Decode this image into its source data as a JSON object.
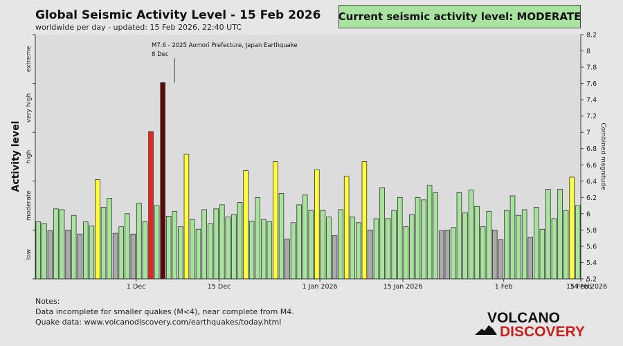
{
  "header": {
    "title": "Global Seismic Activity Level - 15 Feb 2026",
    "subtitle": "worldwide per day - updated: 15 Feb 2026, 22:40 UTC"
  },
  "status": {
    "label": "Current seismic activity level: MODERATE",
    "color": "#a8e4a0"
  },
  "notes": {
    "heading": "Notes:",
    "line1": "Data incomplete for smaller quakes (M<4), near complete from M4.",
    "line2": "Quake data: www.volcanodiscovery.com/earthquakes/today.html"
  },
  "logo": {
    "word1": "VOLCANO",
    "word2": "DISCOVERY"
  },
  "colors": {
    "green": "#a6e49c",
    "gray": "#ababab",
    "yellow": "#ffff3c",
    "red": "#e8231e",
    "darkred": "#5a0a0a"
  },
  "chart_data": {
    "type": "bar",
    "ylabel": "Activity level",
    "y2label": "Combined magnitude",
    "ylim": [
      5.2,
      8.2
    ],
    "right_ticks": [
      "5.2",
      "5.4",
      "5.6",
      "5.8",
      "6",
      "6.2",
      "6.4",
      "6.6",
      "6.8",
      "7",
      "7.2",
      "7.4",
      "7.6",
      "7.8",
      "8",
      "8.2"
    ],
    "levels": [
      "low",
      "moderate",
      "high",
      "very high",
      "extreme"
    ],
    "x_ticks": [
      {
        "label": "1 Dec",
        "day": 17
      },
      {
        "label": "15 Dec",
        "day": 31
      },
      {
        "label": "1 Jan 2026",
        "day": 48
      },
      {
        "label": "15 Jan 2026",
        "day": 62
      },
      {
        "label": "1 Feb",
        "day": 79
      },
      {
        "label": "14 Feb",
        "day": 92
      },
      {
        "label": "15 Feb 2026",
        "day": 93
      }
    ],
    "annotation": {
      "line1": "M7.6 - 2025 Aomori Prefecture, Japan Earthquake",
      "line2": "8 Dec",
      "day": 24
    },
    "values": [
      5.9,
      5.88,
      5.79,
      6.06,
      6.05,
      5.8,
      5.98,
      5.75,
      5.9,
      5.85,
      6.42,
      6.08,
      6.19,
      5.76,
      5.84,
      6.0,
      5.75,
      6.13,
      5.9,
      7.01,
      6.1,
      7.61,
      5.97,
      6.03,
      5.84,
      6.73,
      5.93,
      5.81,
      6.05,
      5.88,
      6.06,
      6.11,
      5.96,
      5.99,
      6.14,
      6.53,
      5.91,
      6.2,
      5.93,
      5.9,
      6.64,
      6.25,
      5.69,
      5.89,
      6.11,
      6.23,
      6.04,
      6.54,
      6.04,
      5.96,
      5.73,
      6.05,
      6.46,
      5.96,
      5.89,
      6.64,
      5.8,
      5.94,
      6.32,
      5.94,
      6.04,
      6.2,
      5.84,
      5.99,
      6.2,
      6.17,
      6.35,
      6.26,
      5.79,
      5.8,
      5.83,
      6.26,
      6.01,
      6.29,
      6.09,
      5.84,
      6.03,
      5.8,
      5.68,
      6.04,
      6.22,
      5.98,
      6.05,
      5.71,
      6.08,
      5.81,
      6.3,
      5.94,
      6.3,
      6.04,
      6.45,
      6.1
    ],
    "colors": [
      "green",
      "green",
      "gray",
      "green",
      "green",
      "gray",
      "green",
      "gray",
      "green",
      "green",
      "yellow",
      "green",
      "green",
      "gray",
      "green",
      "green",
      "gray",
      "green",
      "green",
      "red",
      "green",
      "darkred",
      "green",
      "green",
      "green",
      "yellow",
      "green",
      "green",
      "green",
      "green",
      "green",
      "green",
      "green",
      "green",
      "green",
      "yellow",
      "green",
      "green",
      "green",
      "green",
      "yellow",
      "green",
      "gray",
      "green",
      "green",
      "green",
      "green",
      "yellow",
      "green",
      "green",
      "gray",
      "green",
      "yellow",
      "green",
      "green",
      "yellow",
      "gray",
      "green",
      "green",
      "green",
      "green",
      "green",
      "green",
      "green",
      "green",
      "green",
      "green",
      "green",
      "gray",
      "gray",
      "green",
      "green",
      "green",
      "green",
      "green",
      "green",
      "green",
      "gray",
      "gray",
      "green",
      "green",
      "green",
      "green",
      "gray",
      "green",
      "green",
      "green",
      "green",
      "green",
      "green",
      "yellow",
      "green"
    ]
  }
}
